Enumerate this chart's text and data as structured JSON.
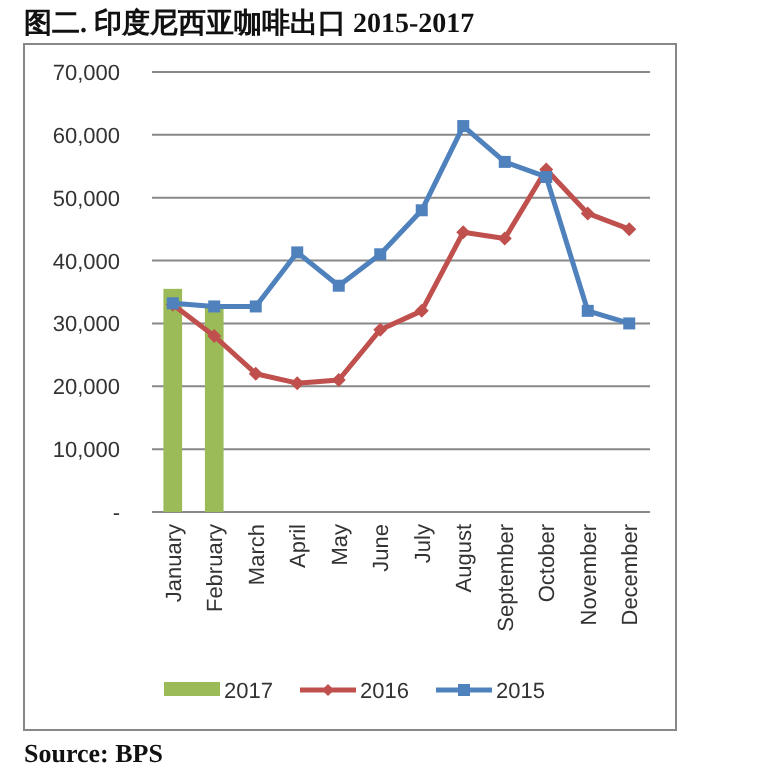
{
  "chart_data": {
    "type": "bar",
    "title": "图二. 印度尼西亚咖啡出口 2015-2017",
    "categories": [
      "January",
      "February",
      "March",
      "April",
      "May",
      "June",
      "July",
      "August",
      "September",
      "October",
      "November",
      "December"
    ],
    "series": [
      {
        "name": "2017",
        "color": "#9bbb59",
        "values": [
          35500,
          33000,
          null,
          null,
          null,
          null,
          null,
          null,
          null,
          null,
          null,
          null
        ]
      },
      {
        "name": "2016",
        "type": "line",
        "color": "#c0504d",
        "marker": "diamond",
        "values": [
          33000,
          28000,
          22000,
          20500,
          21000,
          29000,
          32000,
          44500,
          43500,
          54500,
          47500,
          45000
        ]
      },
      {
        "name": "2015",
        "type": "line",
        "color": "#4f81bd",
        "marker": "square",
        "values": [
          33200,
          32700,
          32700,
          41300,
          36000,
          41000,
          48000,
          61400,
          55700,
          53300,
          32000,
          30000
        ]
      }
    ],
    "ylim": [
      0,
      70000
    ],
    "yticks": [
      {
        "value": 0,
        "label": "-"
      },
      {
        "value": 10000,
        "label": "10,000"
      },
      {
        "value": 20000,
        "label": "20,000"
      },
      {
        "value": 30000,
        "label": "30,000"
      },
      {
        "value": 40000,
        "label": "40,000"
      },
      {
        "value": 50000,
        "label": "50,000"
      },
      {
        "value": 60000,
        "label": "60,000"
      },
      {
        "value": 70000,
        "label": "70,000"
      }
    ],
    "grid": "y",
    "legend": "bottom",
    "annotations": [
      "Source: BPS"
    ]
  }
}
